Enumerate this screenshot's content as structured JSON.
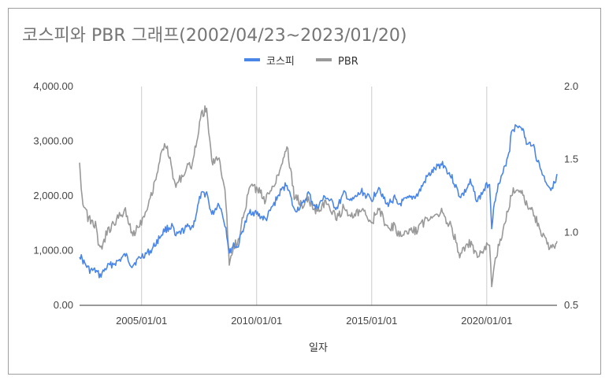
{
  "chart_data": {
    "type": "line",
    "title": "코스피와 PBR 그래프(2002/04/23~2023/01/20)",
    "xlabel": "일자",
    "ylabel_left": "",
    "ylabel_right": "",
    "x_range": [
      "2002/04/23",
      "2023/01/20"
    ],
    "x_ticks": [
      "2005/01/01",
      "2010/01/01",
      "2015/01/01",
      "2020/01/01"
    ],
    "ylim_left": [
      0,
      4000
    ],
    "y_ticks_left": [
      "0.00",
      "1,000.00",
      "2,000.00",
      "3,000.00",
      "4,000.00"
    ],
    "ylim_right": [
      0.5,
      2.0
    ],
    "y_ticks_right": [
      "0.5",
      "1.0",
      "1.5",
      "2.0"
    ],
    "grid": "vertical lines at x ticks",
    "legend_position": "top",
    "series": [
      {
        "name": "코스피",
        "axis": "left",
        "color": "#4a86e8",
        "points": [
          [
            "2002-04-23",
            930
          ],
          [
            "2002-07-01",
            780
          ],
          [
            "2002-10-01",
            640
          ],
          [
            "2003-01-01",
            630
          ],
          [
            "2003-03-15",
            535
          ],
          [
            "2003-07-01",
            700
          ],
          [
            "2003-12-31",
            810
          ],
          [
            "2004-04-20",
            920
          ],
          [
            "2004-08-01",
            730
          ],
          [
            "2004-12-31",
            895
          ],
          [
            "2005-06-01",
            1000
          ],
          [
            "2005-12-31",
            1380
          ],
          [
            "2006-05-10",
            1450
          ],
          [
            "2006-06-15",
            1250
          ],
          [
            "2006-12-31",
            1430
          ],
          [
            "2007-04-01",
            1450
          ],
          [
            "2007-07-25",
            2000
          ],
          [
            "2007-10-31",
            2060
          ],
          [
            "2008-01-20",
            1650
          ],
          [
            "2008-05-15",
            1880
          ],
          [
            "2008-09-01",
            1420
          ],
          [
            "2008-10-24",
            940
          ],
          [
            "2008-12-31",
            1120
          ],
          [
            "2009-03-01",
            1050
          ],
          [
            "2009-06-01",
            1400
          ],
          [
            "2009-09-21",
            1720
          ],
          [
            "2009-12-31",
            1680
          ],
          [
            "2010-05-25",
            1560
          ],
          [
            "2010-12-31",
            2050
          ],
          [
            "2011-04-27",
            2230
          ],
          [
            "2011-08-20",
            1730
          ],
          [
            "2011-12-31",
            1830
          ],
          [
            "2012-04-01",
            2050
          ],
          [
            "2012-07-25",
            1770
          ],
          [
            "2012-12-31",
            1990
          ],
          [
            "2013-06-25",
            1780
          ],
          [
            "2013-10-31",
            2060
          ],
          [
            "2014-02-04",
            1890
          ],
          [
            "2014-07-30",
            2080
          ],
          [
            "2014-12-31",
            1920
          ],
          [
            "2015-04-24",
            2180
          ],
          [
            "2015-08-24",
            1830
          ],
          [
            "2015-12-31",
            1960
          ],
          [
            "2016-02-12",
            1830
          ],
          [
            "2016-06-24",
            1920
          ],
          [
            "2016-12-31",
            2020
          ],
          [
            "2017-05-31",
            2350
          ],
          [
            "2017-10-31",
            2520
          ],
          [
            "2018-01-29",
            2600
          ],
          [
            "2018-06-30",
            2330
          ],
          [
            "2018-10-29",
            2000
          ],
          [
            "2018-12-31",
            2040
          ],
          [
            "2019-04-15",
            2250
          ],
          [
            "2019-08-06",
            1910
          ],
          [
            "2019-12-31",
            2190
          ],
          [
            "2020-02-15",
            2250
          ],
          [
            "2020-03-19",
            1460
          ],
          [
            "2020-06-01",
            2100
          ],
          [
            "2020-09-01",
            2350
          ],
          [
            "2020-12-31",
            2870
          ],
          [
            "2021-01-25",
            3210
          ],
          [
            "2021-06-30",
            3300
          ],
          [
            "2021-10-06",
            2920
          ],
          [
            "2021-12-31",
            2980
          ],
          [
            "2022-03-01",
            2700
          ],
          [
            "2022-06-30",
            2330
          ],
          [
            "2022-09-30",
            2150
          ],
          [
            "2022-12-31",
            2240
          ],
          [
            "2023-01-20",
            2400
          ]
        ]
      },
      {
        "name": "PBR",
        "axis": "right",
        "color": "#999999",
        "points": [
          [
            "2002-04-23",
            1.5
          ],
          [
            "2002-06-01",
            1.24
          ],
          [
            "2002-09-01",
            1.1
          ],
          [
            "2002-12-31",
            1.05
          ],
          [
            "2003-03-15",
            0.87
          ],
          [
            "2003-07-01",
            1.0
          ],
          [
            "2003-12-31",
            1.1
          ],
          [
            "2004-04-20",
            1.16
          ],
          [
            "2004-08-01",
            0.98
          ],
          [
            "2004-12-31",
            1.08
          ],
          [
            "2005-06-01",
            1.25
          ],
          [
            "2005-12-31",
            1.62
          ],
          [
            "2006-03-01",
            1.55
          ],
          [
            "2006-06-15",
            1.32
          ],
          [
            "2006-12-31",
            1.44
          ],
          [
            "2007-04-01",
            1.48
          ],
          [
            "2007-07-25",
            1.8
          ],
          [
            "2007-10-31",
            1.85
          ],
          [
            "2008-01-20",
            1.48
          ],
          [
            "2008-05-15",
            1.52
          ],
          [
            "2008-09-01",
            1.22
          ],
          [
            "2008-10-24",
            0.8
          ],
          [
            "2008-12-31",
            0.92
          ],
          [
            "2009-03-01",
            0.92
          ],
          [
            "2009-06-01",
            1.1
          ],
          [
            "2009-09-21",
            1.32
          ],
          [
            "2009-12-31",
            1.3
          ],
          [
            "2010-05-25",
            1.22
          ],
          [
            "2010-12-31",
            1.42
          ],
          [
            "2011-04-27",
            1.6
          ],
          [
            "2011-08-20",
            1.25
          ],
          [
            "2011-12-31",
            1.19
          ],
          [
            "2012-04-01",
            1.22
          ],
          [
            "2012-07-25",
            1.15
          ],
          [
            "2012-12-31",
            1.2
          ],
          [
            "2013-06-25",
            1.1
          ],
          [
            "2013-10-31",
            1.18
          ],
          [
            "2014-02-04",
            1.1
          ],
          [
            "2014-07-30",
            1.15
          ],
          [
            "2014-12-31",
            1.06
          ],
          [
            "2015-04-24",
            1.18
          ],
          [
            "2015-08-24",
            1.02
          ],
          [
            "2015-12-31",
            1.05
          ],
          [
            "2016-02-12",
            0.98
          ],
          [
            "2016-06-24",
            1.0
          ],
          [
            "2016-12-31",
            1.02
          ],
          [
            "2017-05-31",
            1.1
          ],
          [
            "2017-10-31",
            1.13
          ],
          [
            "2018-01-29",
            1.14
          ],
          [
            "2018-06-30",
            1.02
          ],
          [
            "2018-10-29",
            0.85
          ],
          [
            "2018-12-31",
            0.87
          ],
          [
            "2019-04-15",
            0.93
          ],
          [
            "2019-08-06",
            0.82
          ],
          [
            "2019-12-31",
            0.9
          ],
          [
            "2020-02-15",
            0.92
          ],
          [
            "2020-03-19",
            0.63
          ],
          [
            "2020-06-01",
            0.85
          ],
          [
            "2020-09-01",
            0.97
          ],
          [
            "2020-12-31",
            1.2
          ],
          [
            "2021-01-25",
            1.28
          ],
          [
            "2021-06-30",
            1.3
          ],
          [
            "2021-10-06",
            1.17
          ],
          [
            "2021-12-31",
            1.15
          ],
          [
            "2022-03-01",
            1.08
          ],
          [
            "2022-06-30",
            0.96
          ],
          [
            "2022-09-30",
            0.88
          ],
          [
            "2022-12-31",
            0.9
          ],
          [
            "2023-01-20",
            0.94
          ]
        ]
      }
    ]
  }
}
